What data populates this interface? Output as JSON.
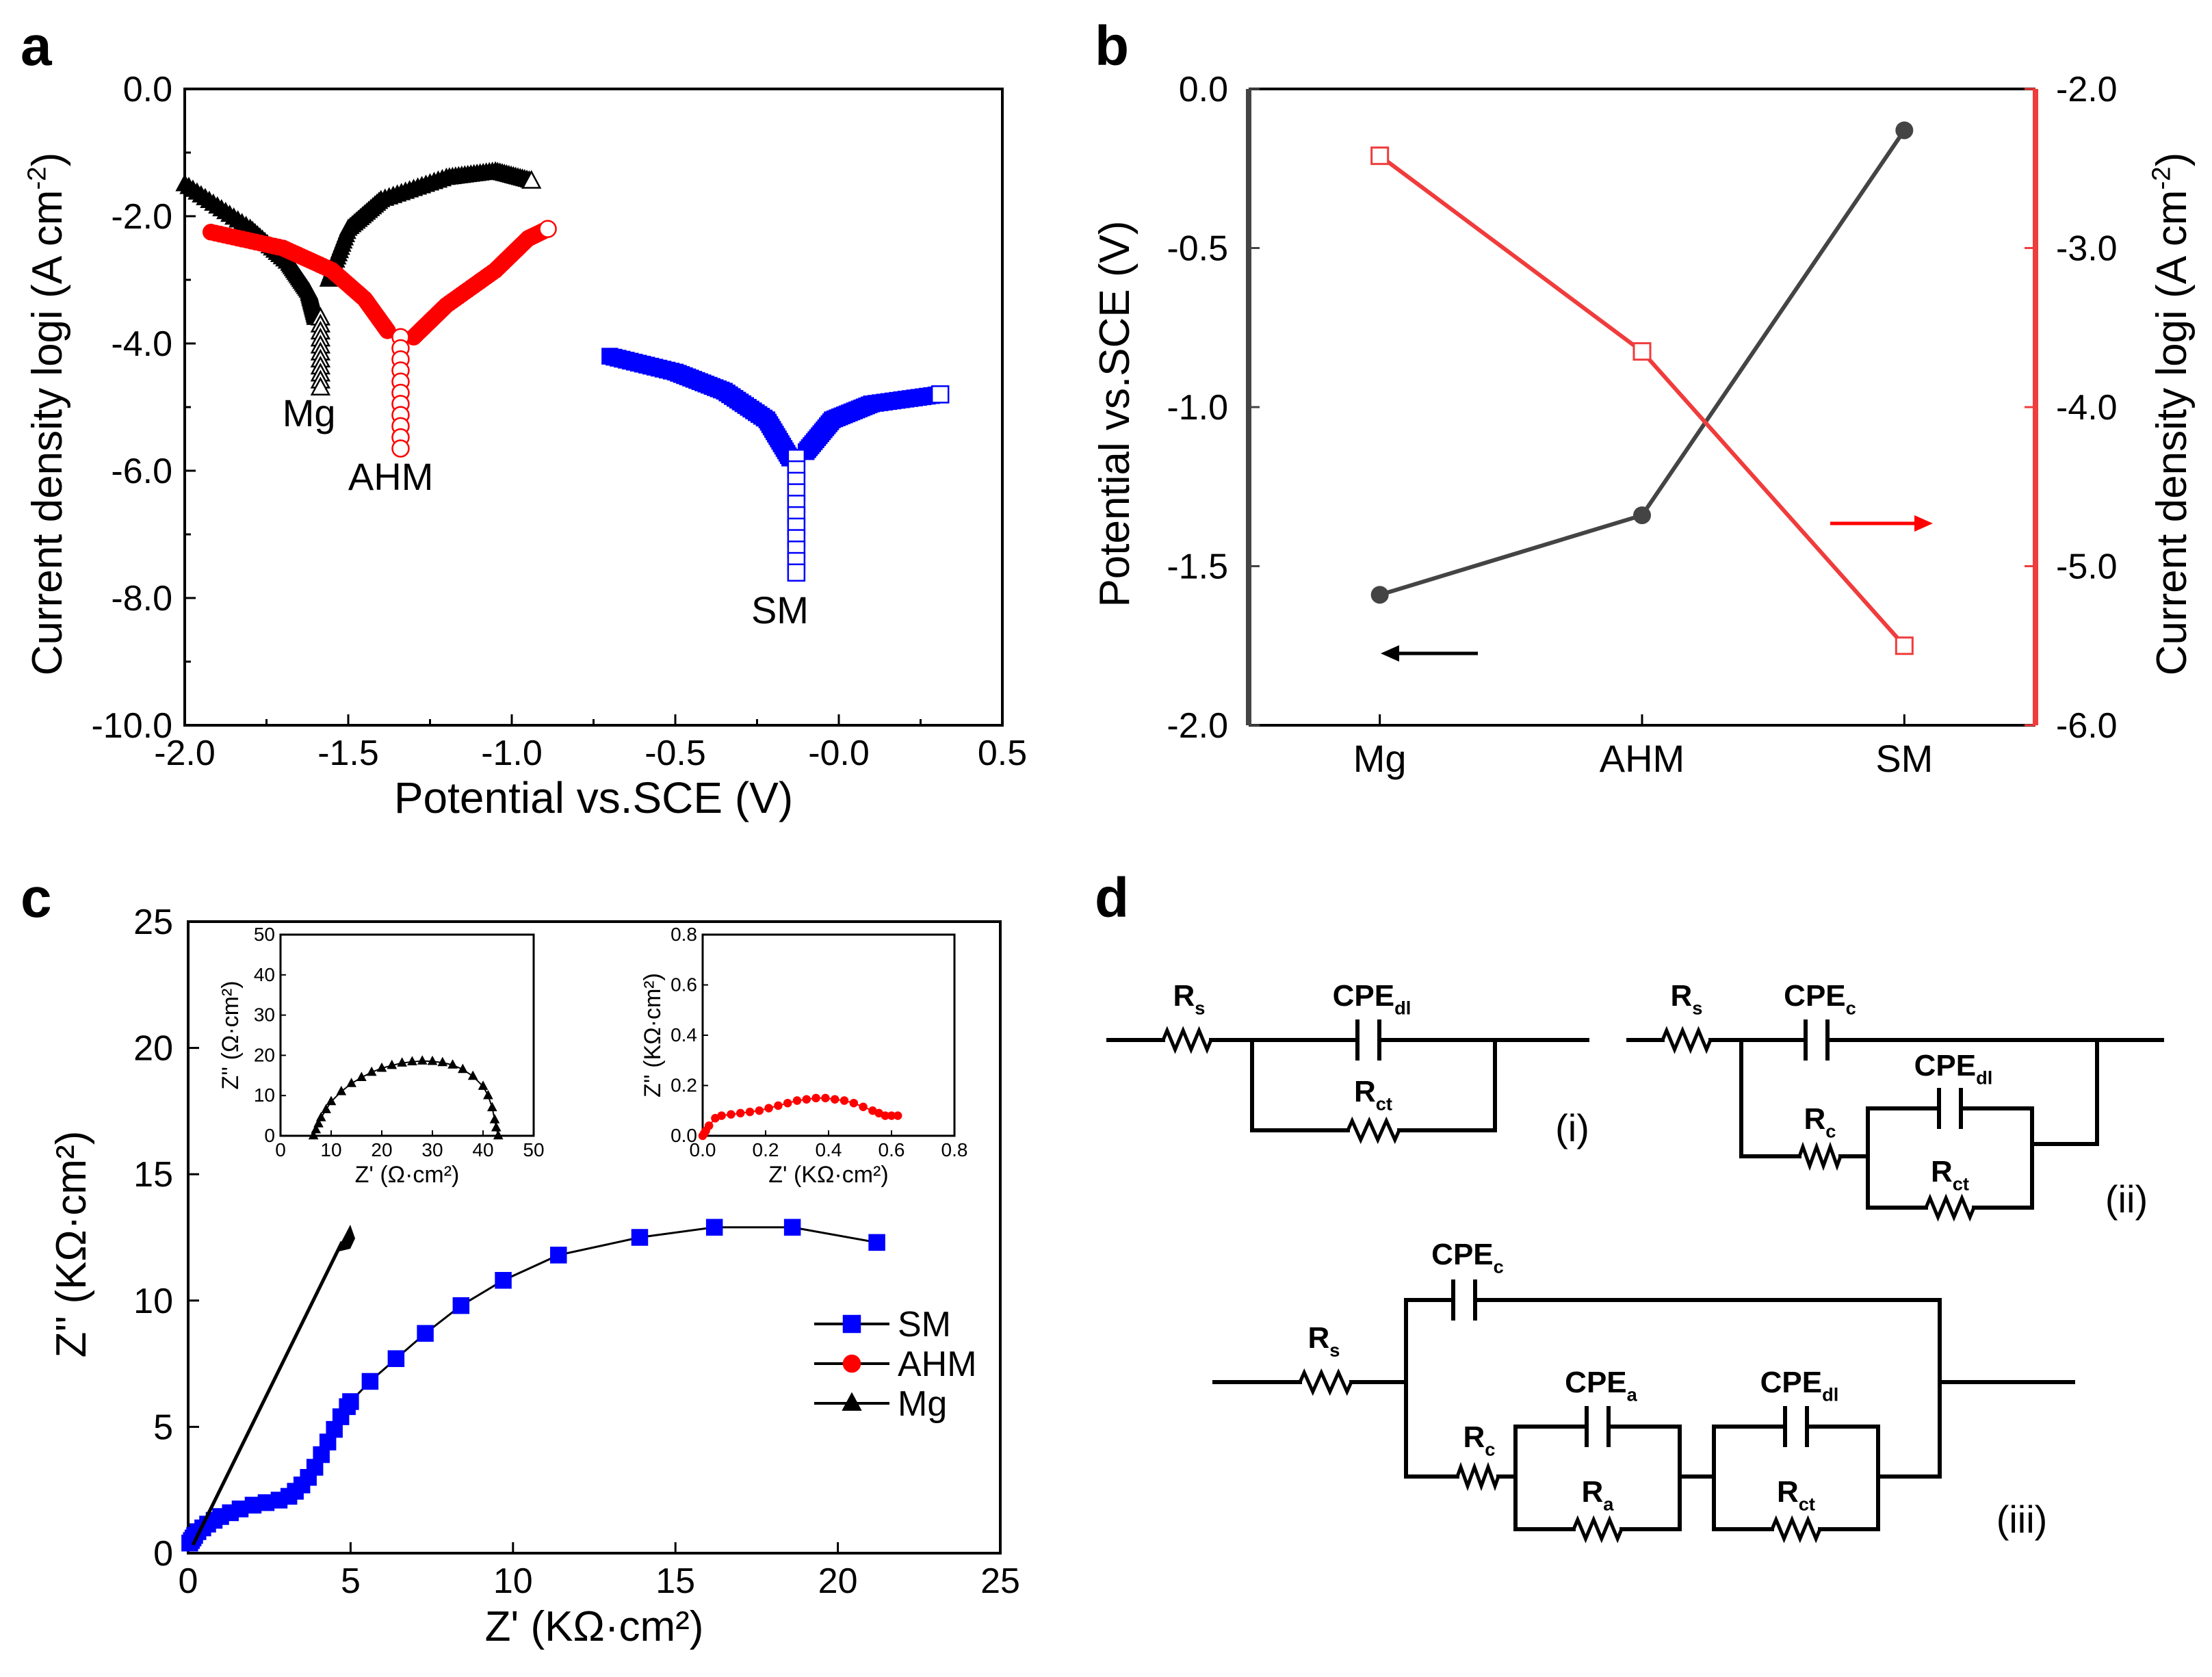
{
  "panel_letters": {
    "a": "a",
    "b": "b",
    "c": "c",
    "d": "d"
  },
  "colors": {
    "black": "#000000",
    "red": "#ff0000",
    "blue": "#0000ff",
    "gray": "#444444",
    "b_red": "#f03c3c"
  },
  "chart_data": [
    {
      "id": "a",
      "type": "scatter",
      "xlabel": "Potential vs.SCE (V)",
      "ylabel_parts": [
        "Current density  logi (A cm",
        "-2",
        ")"
      ],
      "xlim": [
        -2.0,
        0.5
      ],
      "ylim": [
        -10.0,
        0.0
      ],
      "xticks": [
        -2.0,
        -1.5,
        -1.0,
        -0.5,
        0.0,
        0.5
      ],
      "xtick_labels": [
        "-2.0",
        "-1.5",
        "-1.0",
        "-0.5",
        "-0.0",
        "0.5"
      ],
      "yticks": [
        0.0,
        -2.0,
        -4.0,
        -6.0,
        -8.0,
        -10.0
      ],
      "ytick_labels": [
        "0.0",
        "-2.0",
        "-4.0",
        "-6.0",
        "-8.0",
        "-10.0"
      ],
      "series": [
        {
          "name": "Mg",
          "marker": "triangle",
          "color": "#000000",
          "ecorr": -1.585,
          "icorr": -4.7,
          "cathodic": [
            [
              -2.0,
              -1.5
            ],
            [
              -1.8,
              -2.2
            ],
            [
              -1.68,
              -2.75
            ],
            [
              -1.62,
              -3.2
            ],
            [
              -1.6,
              -3.6
            ]
          ],
          "anodic": [
            [
              -1.56,
              -3.0
            ],
            [
              -1.5,
              -2.2
            ],
            [
              -1.4,
              -1.75
            ],
            [
              -1.2,
              -1.4
            ],
            [
              -1.05,
              -1.3
            ],
            [
              -0.94,
              -1.45
            ]
          ]
        },
        {
          "name": "AHM",
          "marker": "circle",
          "color": "#ff0000",
          "ecorr": -1.34,
          "icorr": -5.65,
          "cathodic": [
            [
              -1.92,
              -2.25
            ],
            [
              -1.7,
              -2.5
            ],
            [
              -1.55,
              -2.85
            ],
            [
              -1.45,
              -3.3
            ],
            [
              -1.38,
              -3.8
            ]
          ],
          "anodic": [
            [
              -1.3,
              -3.9
            ],
            [
              -1.2,
              -3.4
            ],
            [
              -1.05,
              -2.85
            ],
            [
              -0.95,
              -2.35
            ],
            [
              -0.89,
              -2.2
            ]
          ]
        },
        {
          "name": "SM",
          "marker": "square",
          "color": "#0000ff",
          "ecorr": -0.13,
          "icorr": -7.6,
          "cathodic": [
            [
              -0.7,
              -4.2
            ],
            [
              -0.5,
              -4.45
            ],
            [
              -0.35,
              -4.75
            ],
            [
              -0.22,
              -5.2
            ],
            [
              -0.15,
              -5.8
            ]
          ],
          "anodic": [
            [
              -0.1,
              -5.7
            ],
            [
              -0.02,
              -5.2
            ],
            [
              0.1,
              -4.95
            ],
            [
              0.31,
              -4.8
            ]
          ]
        }
      ],
      "annotations": [
        {
          "text": "Mg",
          "x": -1.62,
          "y": -5.3
        },
        {
          "text": "AHM",
          "x": -1.37,
          "y": -6.3
        },
        {
          "text": "SM",
          "x": -0.18,
          "y": -8.4
        }
      ]
    },
    {
      "id": "b",
      "type": "line",
      "categories": [
        "Mg",
        "AHM",
        "SM"
      ],
      "series": [
        {
          "name": "Potential vs.SCE (V)",
          "axis": "left",
          "marker": "filled-circle",
          "color": "#444444",
          "values": [
            -1.59,
            -1.34,
            -0.13
          ]
        },
        {
          "name": "Current density  logi (A cm-2)",
          "axis": "right",
          "marker": "open-square",
          "color": "#f03c3c",
          "values": [
            -2.42,
            -3.65,
            -5.5
          ]
        }
      ],
      "ylabel_left": "Potential vs.SCE (V)",
      "ylabel_right_parts": [
        "Current density  logi (A cm",
        "-2",
        ")"
      ],
      "ylim_left": [
        -2.0,
        0.0
      ],
      "yticks_left": [
        0.0,
        -0.5,
        -1.0,
        -1.5,
        -2.0
      ],
      "ytick_labels_left": [
        "0.0",
        "-0.5",
        "-1.0",
        "-1.5",
        "-2.0"
      ],
      "ylim_right": [
        -6.0,
        -2.0
      ],
      "yticks_right": [
        -2.0,
        -3.0,
        -4.0,
        -5.0,
        -6.0
      ],
      "ytick_labels_right": [
        "-2.0",
        "-3.0",
        "-4.0",
        "-5.0",
        "-6.0"
      ]
    },
    {
      "id": "c",
      "type": "scatter",
      "xlabel": "Z' (KΩ·cm²)",
      "ylabel": "Z'' (KΩ·cm²)",
      "xlim": [
        0,
        25
      ],
      "ylim": [
        0,
        25
      ],
      "xticks": [
        0,
        5,
        10,
        15,
        20,
        25
      ],
      "yticks": [
        0,
        5,
        10,
        15,
        20,
        25
      ],
      "series": [
        {
          "name": "SM",
          "marker": "square",
          "color": "#0000ff",
          "x": [
            0.05,
            0.1,
            0.15,
            0.2,
            0.3,
            0.45,
            0.6,
            0.8,
            1.0,
            1.3,
            1.6,
            2.0,
            2.4,
            2.8,
            3.1,
            3.3,
            3.5,
            3.7,
            3.9,
            4.1,
            4.3,
            4.5,
            4.7,
            4.9,
            5.0,
            5.6,
            6.4,
            7.3,
            8.4,
            9.7,
            11.4,
            13.9,
            16.2,
            18.6,
            21.2
          ],
          "y": [
            0.4,
            0.5,
            0.6,
            0.7,
            0.85,
            1.0,
            1.15,
            1.3,
            1.45,
            1.6,
            1.75,
            1.9,
            2.0,
            2.1,
            2.25,
            2.45,
            2.7,
            3.0,
            3.4,
            3.9,
            4.4,
            4.9,
            5.4,
            5.8,
            6.0,
            6.8,
            7.7,
            8.7,
            9.8,
            10.8,
            11.8,
            12.5,
            12.9,
            12.9,
            12.3
          ]
        },
        {
          "name": "AHM",
          "marker": "circle",
          "color": "#ff0000",
          "x": [],
          "y": []
        },
        {
          "name": "Mg",
          "marker": "triangle",
          "color": "#000000",
          "x": [],
          "y": []
        }
      ],
      "legend": [
        "SM",
        "AHM",
        "Mg"
      ],
      "legend_position": "center-right",
      "insets": [
        {
          "id": "c-inset-mg",
          "type": "scatter",
          "xlabel": "Z' (Ω·cm²)",
          "ylabel": "Z'' (Ω·cm²)",
          "xlim": [
            0,
            50
          ],
          "ylim": [
            0,
            50
          ],
          "xticks": [
            0,
            10,
            20,
            30,
            40,
            50
          ],
          "yticks": [
            0,
            10,
            20,
            30,
            40,
            50
          ],
          "series": [
            {
              "name": "Mg",
              "marker": "triangle",
              "color": "#000000",
              "x": [
                6.5,
                7,
                7.5,
                8,
                9,
                10,
                12,
                14,
                16,
                18,
                20,
                22,
                24,
                26,
                28,
                30,
                32,
                34,
                36,
                38,
                40,
                41,
                41.8,
                42.3,
                42.6,
                43
              ],
              "y": [
                0,
                1.5,
                3,
                4.5,
                6.5,
                8.5,
                11,
                13,
                14.5,
                15.8,
                16.8,
                17.5,
                18.1,
                18.4,
                18.6,
                18.5,
                18.2,
                17.6,
                16.5,
                14.8,
                12.3,
                10,
                7,
                4,
                2,
                0
              ]
            }
          ]
        },
        {
          "id": "c-inset-ahm",
          "type": "scatter",
          "xlabel": "Z' (KΩ·cm²)",
          "ylabel": "Z'' (KΩ·cm²)",
          "xlim": [
            0,
            0.8
          ],
          "ylim": [
            0,
            0.8
          ],
          "xticks": [
            0,
            0.2,
            0.4,
            0.6,
            0.8
          ],
          "xtick_labels": [
            "0.0",
            "0.2",
            "0.4",
            "0.6",
            "0.8"
          ],
          "yticks": [
            0,
            0.2,
            0.4,
            0.6,
            0.8
          ],
          "ytick_labels": [
            "0.0",
            "0.2",
            "0.4",
            "0.6",
            "0.8"
          ],
          "series": [
            {
              "name": "AHM",
              "marker": "circle",
              "color": "#ff0000",
              "x": [
                0.0,
                0.005,
                0.01,
                0.02,
                0.04,
                0.06,
                0.09,
                0.12,
                0.15,
                0.18,
                0.21,
                0.24,
                0.27,
                0.3,
                0.33,
                0.36,
                0.39,
                0.42,
                0.45,
                0.48,
                0.51,
                0.54,
                0.56,
                0.58,
                0.6,
                0.62
              ],
              "y": [
                0.0,
                0.01,
                0.02,
                0.04,
                0.07,
                0.08,
                0.085,
                0.09,
                0.095,
                0.1,
                0.11,
                0.12,
                0.13,
                0.14,
                0.145,
                0.15,
                0.15,
                0.145,
                0.14,
                0.13,
                0.115,
                0.1,
                0.09,
                0.08,
                0.08,
                0.08
              ]
            }
          ]
        }
      ]
    }
  ],
  "circuits": {
    "i": {
      "label": "(i)",
      "Rs": [
        "R",
        "s"
      ],
      "CPE": [
        "CPE",
        "dl"
      ],
      "Rct": [
        "R",
        "ct"
      ]
    },
    "ii": {
      "label": "(ii)",
      "Rs": [
        "R",
        "s"
      ],
      "CPEc": [
        "CPE",
        "c"
      ],
      "CPEdl": [
        "CPE",
        "dl"
      ],
      "Rc": [
        "R",
        "c"
      ],
      "Rct": [
        "R",
        "ct"
      ]
    },
    "iii": {
      "label": "(iii)",
      "Rs": [
        "R",
        "s"
      ],
      "CPEc": [
        "CPE",
        "c"
      ],
      "CPEa": [
        "CPE",
        "a"
      ],
      "CPEdl": [
        "CPE",
        "dl"
      ],
      "Rc": [
        "R",
        "c"
      ],
      "Ra": [
        "R",
        "a"
      ],
      "Rct": [
        "R",
        "ct"
      ]
    }
  }
}
